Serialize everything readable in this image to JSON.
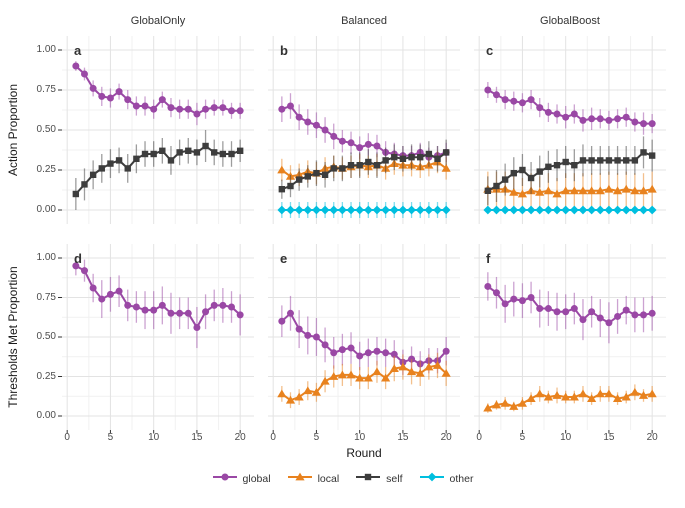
{
  "figure": {
    "facet_columns": [
      "GlobalOnly",
      "Balanced",
      "GlobalBoost"
    ],
    "ylabel_top": "Action Proportion",
    "ylabel_bottom": "Thresholds Met Proportion",
    "xlabel": "Round",
    "x_ticks": [
      "0",
      "5",
      "10",
      "15",
      "20"
    ],
    "x_minor_ticks": [
      2.5,
      7.5,
      12.5,
      17.5
    ],
    "y_tick_labels": [
      "1.00",
      "0.75",
      "0.50",
      "0.25",
      "0.00"
    ],
    "y_tick_values": [
      1.0,
      0.75,
      0.5,
      0.25,
      0.0
    ],
    "y_minor_values": [
      0.875,
      0.625,
      0.375,
      0.125
    ],
    "colors": {
      "background": "#FFFFFF",
      "grid_major": "#E3E3E3",
      "grid_minor": "#F1F1F1",
      "tick_text": "#4D4D4D",
      "axis_tick_mark": "#333333"
    }
  },
  "series_styles": {
    "global": {
      "color": "#9A48A5",
      "shape": "circle"
    },
    "local": {
      "color": "#E8821E",
      "shape": "triangle"
    },
    "self": {
      "color": "#3D3D3D",
      "shape": "square"
    },
    "other": {
      "color": "#00BFDF",
      "shape": "diamond"
    }
  },
  "legend": {
    "items": [
      {
        "label": "global",
        "series": "global"
      },
      {
        "label": "local",
        "series": "local"
      },
      {
        "label": "self",
        "series": "self"
      },
      {
        "label": "other",
        "series": "other"
      }
    ]
  },
  "chart_data": [
    {
      "panel": "a",
      "facet": "GlobalOnly",
      "metric": "Action Proportion",
      "type": "line",
      "x": [
        1,
        2,
        3,
        4,
        5,
        6,
        7,
        8,
        9,
        10,
        11,
        12,
        13,
        14,
        15,
        16,
        17,
        18,
        19,
        20
      ],
      "xlim": [
        0,
        21
      ],
      "ylim": [
        0,
        1
      ],
      "series": [
        {
          "name": "global",
          "values": [
            0.9,
            0.85,
            0.76,
            0.71,
            0.7,
            0.74,
            0.69,
            0.65,
            0.65,
            0.63,
            0.69,
            0.64,
            0.63,
            0.63,
            0.6,
            0.63,
            0.64,
            0.64,
            0.62,
            0.62
          ],
          "errors": [
            0.03,
            0.04,
            0.05,
            0.06,
            0.06,
            0.05,
            0.06,
            0.06,
            0.06,
            0.06,
            0.05,
            0.06,
            0.06,
            0.06,
            0.07,
            0.06,
            0.05,
            0.05,
            0.05,
            0.05
          ]
        },
        {
          "name": "self",
          "values": [
            0.1,
            0.16,
            0.22,
            0.26,
            0.29,
            0.31,
            0.26,
            0.32,
            0.35,
            0.35,
            0.37,
            0.31,
            0.36,
            0.37,
            0.36,
            0.4,
            0.36,
            0.35,
            0.35,
            0.37
          ],
          "errors": [
            0.1,
            0.1,
            0.09,
            0.09,
            0.09,
            0.08,
            0.09,
            0.09,
            0.08,
            0.08,
            0.08,
            0.09,
            0.08,
            0.08,
            0.08,
            0.1,
            0.08,
            0.08,
            0.08,
            0.07
          ]
        }
      ]
    },
    {
      "panel": "b",
      "facet": "Balanced",
      "metric": "Action Proportion",
      "type": "line",
      "x": [
        1,
        2,
        3,
        4,
        5,
        6,
        7,
        8,
        9,
        10,
        11,
        12,
        13,
        14,
        15,
        16,
        17,
        18,
        19,
        20
      ],
      "xlim": [
        0,
        21
      ],
      "ylim": [
        0,
        1
      ],
      "series": [
        {
          "name": "global",
          "values": [
            0.63,
            0.65,
            0.58,
            0.55,
            0.53,
            0.5,
            0.46,
            0.43,
            0.42,
            0.39,
            0.41,
            0.4,
            0.36,
            0.35,
            0.34,
            0.34,
            0.36,
            0.33,
            0.34,
            0.36
          ],
          "errors": [
            0.08,
            0.08,
            0.08,
            0.08,
            0.08,
            0.08,
            0.08,
            0.07,
            0.07,
            0.07,
            0.07,
            0.07,
            0.07,
            0.07,
            0.06,
            0.06,
            0.06,
            0.06,
            0.06,
            0.06
          ]
        },
        {
          "name": "local",
          "values": [
            0.25,
            0.21,
            0.22,
            0.24,
            0.23,
            0.26,
            0.27,
            0.26,
            0.27,
            0.28,
            0.27,
            0.28,
            0.26,
            0.29,
            0.28,
            0.28,
            0.27,
            0.28,
            0.3,
            0.26
          ],
          "errors": [
            0.07,
            0.07,
            0.07,
            0.07,
            0.07,
            0.07,
            0.07,
            0.07,
            0.07,
            0.07,
            0.07,
            0.07,
            0.07,
            0.07,
            0.07,
            0.07,
            0.07,
            0.07,
            0.07,
            0.07
          ]
        },
        {
          "name": "self",
          "values": [
            0.13,
            0.15,
            0.19,
            0.21,
            0.23,
            0.22,
            0.26,
            0.26,
            0.28,
            0.28,
            0.3,
            0.28,
            0.31,
            0.33,
            0.32,
            0.33,
            0.33,
            0.35,
            0.32,
            0.36
          ],
          "errors": [
            0.06,
            0.07,
            0.07,
            0.07,
            0.08,
            0.08,
            0.08,
            0.08,
            0.08,
            0.08,
            0.08,
            0.08,
            0.08,
            0.08,
            0.08,
            0.08,
            0.08,
            0.08,
            0.08,
            0.08
          ]
        },
        {
          "name": "other",
          "values": [
            0,
            0,
            0,
            0,
            0,
            0,
            0,
            0,
            0,
            0,
            0,
            0,
            0,
            0,
            0,
            0,
            0,
            0,
            0,
            0
          ],
          "errors": [
            0.05,
            0.05,
            0.05,
            0.05,
            0.05,
            0.05,
            0.05,
            0.05,
            0.05,
            0.05,
            0.05,
            0.05,
            0.05,
            0.05,
            0.05,
            0.05,
            0.05,
            0.05,
            0.05,
            0.05
          ]
        }
      ]
    },
    {
      "panel": "c",
      "facet": "GlobalBoost",
      "metric": "Action Proportion",
      "type": "line",
      "x": [
        1,
        2,
        3,
        4,
        5,
        6,
        7,
        8,
        9,
        10,
        11,
        12,
        13,
        14,
        15,
        16,
        17,
        18,
        19,
        20
      ],
      "xlim": [
        0,
        21
      ],
      "ylim": [
        0,
        1
      ],
      "series": [
        {
          "name": "global",
          "values": [
            0.75,
            0.72,
            0.69,
            0.68,
            0.67,
            0.69,
            0.64,
            0.61,
            0.6,
            0.58,
            0.6,
            0.56,
            0.57,
            0.57,
            0.56,
            0.57,
            0.58,
            0.55,
            0.54,
            0.54
          ],
          "errors": [
            0.05,
            0.05,
            0.06,
            0.06,
            0.06,
            0.06,
            0.06,
            0.06,
            0.06,
            0.07,
            0.06,
            0.07,
            0.07,
            0.06,
            0.06,
            0.06,
            0.06,
            0.06,
            0.07,
            0.06
          ]
        },
        {
          "name": "local",
          "values": [
            0.13,
            0.13,
            0.13,
            0.11,
            0.1,
            0.12,
            0.11,
            0.12,
            0.1,
            0.12,
            0.12,
            0.12,
            0.12,
            0.12,
            0.13,
            0.12,
            0.13,
            0.12,
            0.12,
            0.13
          ],
          "errors": [
            0.11,
            0.11,
            0.11,
            0.1,
            0.1,
            0.11,
            0.1,
            0.11,
            0.1,
            0.11,
            0.11,
            0.11,
            0.11,
            0.11,
            0.11,
            0.11,
            0.11,
            0.11,
            0.11,
            0.11
          ]
        },
        {
          "name": "self",
          "values": [
            0.12,
            0.15,
            0.19,
            0.23,
            0.25,
            0.2,
            0.24,
            0.27,
            0.28,
            0.3,
            0.28,
            0.31,
            0.31,
            0.31,
            0.31,
            0.31,
            0.31,
            0.31,
            0.36,
            0.34
          ],
          "errors": [
            0.09,
            0.1,
            0.1,
            0.1,
            0.1,
            0.1,
            0.1,
            0.1,
            0.1,
            0.1,
            0.1,
            0.1,
            0.09,
            0.09,
            0.09,
            0.09,
            0.09,
            0.09,
            0.1,
            0.1
          ]
        },
        {
          "name": "other",
          "values": [
            0,
            0,
            0,
            0,
            0,
            0,
            0,
            0,
            0,
            0,
            0,
            0,
            0,
            0,
            0,
            0,
            0,
            0,
            0,
            0
          ],
          "errors": [
            0.02,
            0.02,
            0.02,
            0.02,
            0.02,
            0.02,
            0.02,
            0.02,
            0.02,
            0.02,
            0.02,
            0.02,
            0.02,
            0.02,
            0.02,
            0.02,
            0.02,
            0.02,
            0.02,
            0.02
          ]
        }
      ]
    },
    {
      "panel": "d",
      "facet": "GlobalOnly",
      "metric": "Thresholds Met Proportion",
      "type": "line",
      "x": [
        1,
        2,
        3,
        4,
        5,
        6,
        7,
        8,
        9,
        10,
        11,
        12,
        13,
        14,
        15,
        16,
        17,
        18,
        19,
        20
      ],
      "xlim": [
        0,
        21
      ],
      "ylim": [
        0,
        1
      ],
      "series": [
        {
          "name": "global",
          "values": [
            0.95,
            0.92,
            0.81,
            0.74,
            0.77,
            0.79,
            0.7,
            0.69,
            0.67,
            0.67,
            0.7,
            0.65,
            0.65,
            0.65,
            0.56,
            0.66,
            0.7,
            0.7,
            0.69,
            0.64
          ],
          "errors": [
            0.06,
            0.07,
            0.09,
            0.12,
            0.11,
            0.1,
            0.1,
            0.1,
            0.12,
            0.12,
            0.12,
            0.13,
            0.1,
            0.1,
            0.13,
            0.11,
            0.1,
            0.11,
            0.1,
            0.13
          ]
        }
      ]
    },
    {
      "panel": "e",
      "facet": "Balanced",
      "metric": "Thresholds Met Proportion",
      "type": "line",
      "x": [
        1,
        2,
        3,
        4,
        5,
        6,
        7,
        8,
        9,
        10,
        11,
        12,
        13,
        14,
        15,
        16,
        17,
        18,
        19,
        20
      ],
      "xlim": [
        0,
        21
      ],
      "ylim": [
        0,
        1
      ],
      "series": [
        {
          "name": "global",
          "values": [
            0.6,
            0.65,
            0.55,
            0.51,
            0.5,
            0.45,
            0.4,
            0.42,
            0.43,
            0.38,
            0.4,
            0.41,
            0.4,
            0.39,
            0.34,
            0.36,
            0.33,
            0.35,
            0.35,
            0.41
          ],
          "errors": [
            0.1,
            0.11,
            0.12,
            0.12,
            0.12,
            0.11,
            0.1,
            0.1,
            0.1,
            0.09,
            0.09,
            0.09,
            0.09,
            0.09,
            0.08,
            0.08,
            0.08,
            0.08,
            0.08,
            0.09
          ]
        },
        {
          "name": "local",
          "values": [
            0.14,
            0.1,
            0.12,
            0.16,
            0.15,
            0.22,
            0.25,
            0.26,
            0.26,
            0.24,
            0.24,
            0.28,
            0.24,
            0.3,
            0.31,
            0.28,
            0.27,
            0.31,
            0.32,
            0.27
          ],
          "errors": [
            0.05,
            0.05,
            0.05,
            0.06,
            0.06,
            0.07,
            0.07,
            0.07,
            0.07,
            0.07,
            0.07,
            0.07,
            0.07,
            0.08,
            0.08,
            0.08,
            0.08,
            0.08,
            0.08,
            0.08
          ]
        }
      ]
    },
    {
      "panel": "f",
      "facet": "GlobalBoost",
      "metric": "Thresholds Met Proportion",
      "type": "line",
      "x": [
        1,
        2,
        3,
        4,
        5,
        6,
        7,
        8,
        9,
        10,
        11,
        12,
        13,
        14,
        15,
        16,
        17,
        18,
        19,
        20
      ],
      "xlim": [
        0,
        21
      ],
      "ylim": [
        0,
        1
      ],
      "series": [
        {
          "name": "global",
          "values": [
            0.82,
            0.78,
            0.71,
            0.74,
            0.73,
            0.75,
            0.68,
            0.68,
            0.66,
            0.66,
            0.68,
            0.61,
            0.66,
            0.62,
            0.59,
            0.63,
            0.67,
            0.64,
            0.64,
            0.65
          ],
          "errors": [
            0.09,
            0.1,
            0.12,
            0.11,
            0.11,
            0.1,
            0.12,
            0.11,
            0.12,
            0.11,
            0.1,
            0.13,
            0.1,
            0.12,
            0.13,
            0.11,
            0.09,
            0.11,
            0.11,
            0.11
          ]
        },
        {
          "name": "local",
          "values": [
            0.05,
            0.07,
            0.08,
            0.06,
            0.08,
            0.11,
            0.14,
            0.12,
            0.13,
            0.12,
            0.12,
            0.14,
            0.11,
            0.14,
            0.14,
            0.11,
            0.12,
            0.15,
            0.13,
            0.14
          ],
          "errors": [
            0.03,
            0.03,
            0.04,
            0.03,
            0.04,
            0.04,
            0.05,
            0.04,
            0.05,
            0.04,
            0.04,
            0.05,
            0.04,
            0.05,
            0.05,
            0.04,
            0.04,
            0.05,
            0.04,
            0.05
          ]
        }
      ]
    }
  ]
}
